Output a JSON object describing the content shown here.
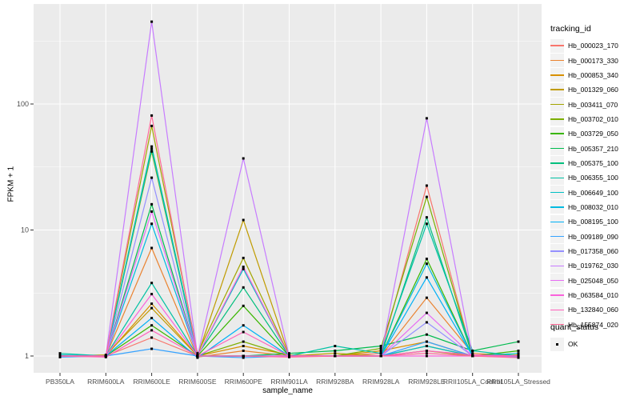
{
  "chart_data": {
    "type": "line",
    "title": "",
    "xlabel": "sample_name",
    "ylabel": "FPKM + 1",
    "y_scale": "log10",
    "ylim": [
      0.6,
      700
    ],
    "yticks": [
      1,
      10,
      100
    ],
    "grid": true,
    "legend_position": "right",
    "panel_color": "#EBEBEB",
    "grid_color": "#FFFFFF",
    "axis_text_color": "#4D4D4D",
    "point_marker": "black-square",
    "categories": [
      "PB350LA",
      "RRIM600LA",
      "RRIM600LE",
      "RRIM600SE",
      "RRIM600PE",
      "RRIM901LA",
      "RRIM928BA",
      "RRIM928LA",
      "RRIM928LE",
      "RRII105LA_Control",
      "RRII105LA_Stressed"
    ],
    "legend_title": "tracking_id",
    "series": [
      {
        "name": "Hb_000023_170",
        "color": "#F8766D",
        "values": [
          1.0,
          1.0,
          1.4,
          1.0,
          1.0,
          1.0,
          1.0,
          1.05,
          22.5,
          1.0,
          1.0
        ]
      },
      {
        "name": "Hb_000173_330",
        "color": "#EA8331",
        "values": [
          1.0,
          1.0,
          7.2,
          0.98,
          1.1,
          1.0,
          1.0,
          1.0,
          2.9,
          1.05,
          1.0
        ]
      },
      {
        "name": "Hb_000853_340",
        "color": "#D89000",
        "values": [
          1.0,
          1.0,
          2.6,
          1.0,
          1.2,
          1.02,
          1.0,
          1.1,
          1.3,
          1.0,
          1.02
        ]
      },
      {
        "name": "Hb_001329_060",
        "color": "#C09B00",
        "values": [
          1.0,
          1.02,
          2.4,
          1.0,
          12.0,
          1.0,
          1.05,
          1.0,
          1.2,
          1.0,
          1.0
        ]
      },
      {
        "name": "Hb_003411_070",
        "color": "#A3A500",
        "values": [
          1.0,
          1.0,
          67.0,
          1.05,
          6.0,
          1.0,
          1.0,
          1.0,
          1.1,
          1.0,
          1.0
        ]
      },
      {
        "name": "Hb_003702_010",
        "color": "#7CAE00",
        "values": [
          1.0,
          1.0,
          42.0,
          1.0,
          1.3,
          1.0,
          1.0,
          1.15,
          18.3,
          1.0,
          1.0
        ]
      },
      {
        "name": "Hb_003729_050",
        "color": "#39B600",
        "values": [
          1.0,
          1.0,
          1.75,
          1.0,
          2.5,
          1.0,
          1.0,
          1.0,
          5.9,
          1.0,
          1.1
        ]
      },
      {
        "name": "Hb_005357_210",
        "color": "#00BB4E",
        "values": [
          1.0,
          1.0,
          16.0,
          1.0,
          1.0,
          1.05,
          1.1,
          1.2,
          1.48,
          1.1,
          1.3
        ]
      },
      {
        "name": "Hb_005375_100",
        "color": "#00BF7D",
        "values": [
          1.0,
          1.0,
          46.0,
          1.02,
          3.5,
          1.0,
          1.0,
          1.0,
          12.6,
          1.0,
          1.0
        ]
      },
      {
        "name": "Hb_006355_100",
        "color": "#00C1A3",
        "values": [
          1.05,
          1.0,
          3.8,
          1.0,
          1.0,
          1.0,
          1.2,
          1.05,
          11.2,
          1.1,
          1.0
        ]
      },
      {
        "name": "Hb_006649_100",
        "color": "#00BFC4",
        "values": [
          1.02,
          1.0,
          44.0,
          1.0,
          4.9,
          1.0,
          1.0,
          1.0,
          1.2,
          1.0,
          1.05
        ]
      },
      {
        "name": "Hb_008032_010",
        "color": "#00BAE0",
        "values": [
          1.0,
          1.0,
          11.2,
          1.0,
          1.0,
          1.0,
          1.0,
          1.0,
          5.4,
          1.0,
          1.0
        ]
      },
      {
        "name": "Hb_008195_100",
        "color": "#00B0F6",
        "values": [
          1.0,
          1.0,
          2.0,
          0.97,
          1.75,
          1.0,
          1.0,
          1.0,
          4.2,
          1.0,
          1.0
        ]
      },
      {
        "name": "Hb_009189_090",
        "color": "#35A2FF",
        "values": [
          0.98,
          1.0,
          1.14,
          1.0,
          0.97,
          1.0,
          1.0,
          1.0,
          1.3,
          1.0,
          0.98
        ]
      },
      {
        "name": "Hb_017358_060",
        "color": "#9590FF",
        "values": [
          1.0,
          1.0,
          26.0,
          1.0,
          1.0,
          1.0,
          1.0,
          1.0,
          1.85,
          1.0,
          1.0
        ]
      },
      {
        "name": "Hb_019762_030",
        "color": "#C77CFF",
        "values": [
          1.0,
          1.0,
          450.0,
          1.0,
          37.0,
          1.0,
          1.0,
          1.0,
          77.0,
          1.0,
          1.0
        ]
      },
      {
        "name": "Hb_025048_050",
        "color": "#E76BF3",
        "values": [
          1.0,
          1.0,
          14.0,
          1.0,
          1.0,
          1.0,
          1.0,
          1.0,
          2.2,
          1.0,
          1.0
        ]
      },
      {
        "name": "Hb_063584_010",
        "color": "#FA62DB",
        "values": [
          1.0,
          1.0,
          3.1,
          1.0,
          5.1,
          1.0,
          1.0,
          1.0,
          1.0,
          1.0,
          1.0
        ]
      },
      {
        "name": "Hb_132840_060",
        "color": "#FF62BC",
        "values": [
          1.0,
          0.98,
          1.6,
          1.0,
          1.55,
          1.0,
          1.0,
          1.0,
          1.1,
          1.02,
          1.0
        ]
      },
      {
        "name": "Hb_155874_020",
        "color": "#FF6A98",
        "values": [
          1.0,
          1.0,
          81.0,
          1.0,
          1.0,
          0.98,
          1.0,
          1.0,
          1.05,
          1.0,
          0.97
        ]
      }
    ],
    "quant_legend": {
      "title": "quant_status",
      "items": [
        "OK"
      ]
    }
  }
}
